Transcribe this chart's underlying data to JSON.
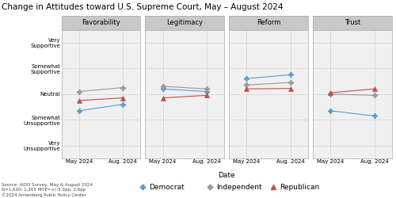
{
  "title": "Change in Attitudes toward U.S. Supreme Court, May – August 2024",
  "panels": [
    "Favorability",
    "Legitimacy",
    "Reform",
    "Trust"
  ],
  "x_labels": [
    "May 2024",
    "Aug. 2024"
  ],
  "x_values": [
    0,
    1
  ],
  "y_ticks": [
    1,
    2,
    3,
    4,
    5
  ],
  "y_tick_labels": [
    "Very\nUnsupportive",
    "Somewhat\nUnsupportive",
    "Neutral",
    "Somewhat\nSupportive",
    "Very\nSupportive"
  ],
  "y_lim": [
    0.5,
    5.5
  ],
  "parties": [
    "Democrat",
    "Independent",
    "Republican"
  ],
  "colors": [
    "#5b9bd5",
    "#999999",
    "#c0504d"
  ],
  "markers": [
    "P",
    "P",
    "^"
  ],
  "data": {
    "Favorability": {
      "Democrat": [
        2.35,
        2.6
      ],
      "Independent": [
        3.1,
        3.25
      ],
      "Republican": [
        2.75,
        2.85
      ]
    },
    "Legitimacy": {
      "Democrat": [
        3.2,
        3.1
      ],
      "Independent": [
        3.3,
        3.2
      ],
      "Republican": [
        2.85,
        2.95
      ]
    },
    "Reform": {
      "Democrat": [
        3.6,
        3.75
      ],
      "Independent": [
        3.35,
        3.45
      ],
      "Republican": [
        3.2,
        3.22
      ]
    },
    "Trust": {
      "Democrat": [
        2.35,
        2.15
      ],
      "Independent": [
        3.0,
        2.95
      ],
      "Republican": [
        3.05,
        3.2
      ]
    }
  },
  "source_text": "Source: AIDD Survey, May & August 2024\nN=1,620; 1,265 MOE=+/-3.3pp; 3.6pp\n©2024 Annenberg Public Policy Center",
  "xlabel": "Date",
  "bg_color": "#f0f0f0",
  "panel_header_color": "#c8c8c8",
  "grid_color": "#cccccc",
  "border_color": "#aaaaaa",
  "title_fontsize": 7.5,
  "panel_fontsize": 6,
  "tick_fontsize": 5,
  "legend_fontsize": 6.5,
  "source_fontsize": 4
}
